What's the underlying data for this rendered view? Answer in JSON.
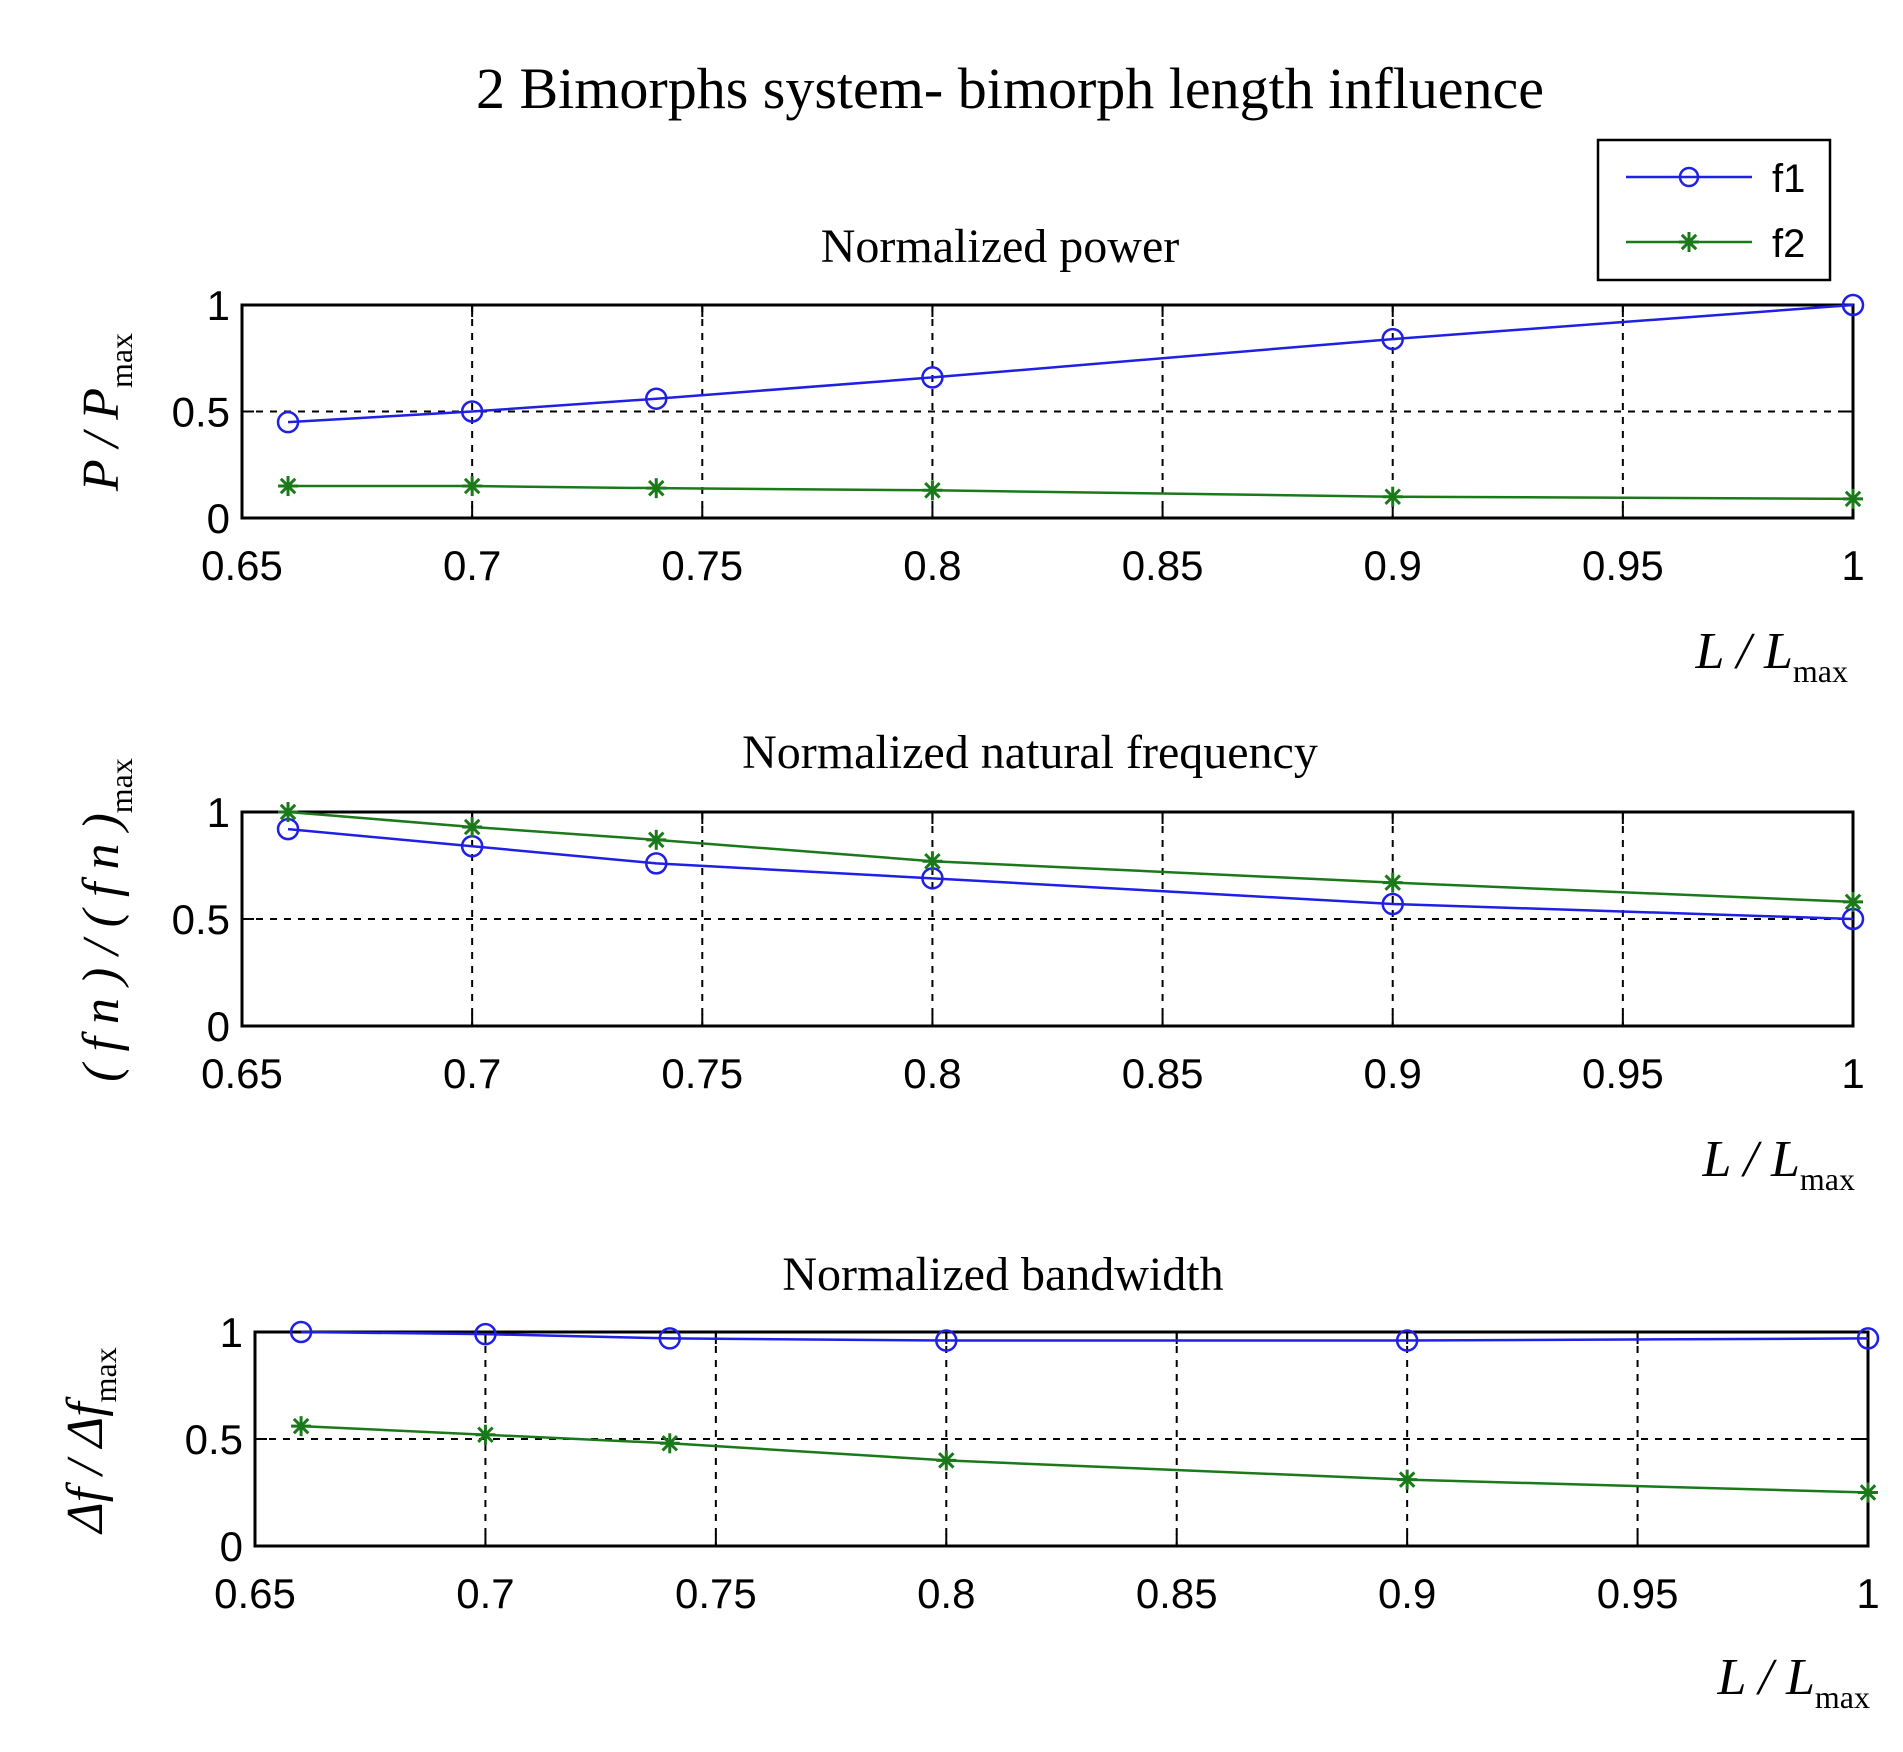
{
  "figure_title": "2 Bimorphs system- bimorph length influence",
  "colors": {
    "f1": "#1f1fe6",
    "f2": "#1a7a1a",
    "axis": "#000000",
    "grid": "#000000"
  },
  "legend": {
    "placement": "top-right",
    "entries": [
      {
        "label": "f1",
        "marker": "circle",
        "color_key": "f1"
      },
      {
        "label": "f2",
        "marker": "asterisk",
        "color_key": "f2"
      }
    ]
  },
  "chart_data": [
    {
      "type": "line",
      "title": "Normalized power",
      "xlabel": {
        "main": "L / L",
        "sub": "max"
      },
      "ylabel": {
        "main": "P / P",
        "sub": "max"
      },
      "xlim": [
        0.65,
        1
      ],
      "ylim": [
        0,
        1
      ],
      "xticks": [
        "0.65",
        "0.7",
        "0.75",
        "0.8",
        "0.85",
        "0.9",
        "0.95",
        "1"
      ],
      "yticks": [
        "0",
        "0.5",
        "1"
      ],
      "grid": true,
      "x": [
        0.66,
        0.7,
        0.74,
        0.8,
        0.9,
        1.0
      ],
      "series": [
        {
          "name": "f1",
          "marker": "circle",
          "values": [
            0.45,
            0.5,
            0.56,
            0.66,
            0.84,
            1.0
          ]
        },
        {
          "name": "f2",
          "marker": "asterisk",
          "values": [
            0.15,
            0.15,
            0.14,
            0.13,
            0.1,
            0.09
          ]
        }
      ]
    },
    {
      "type": "line",
      "title": "Normalized natural frequency",
      "xlabel": {
        "main": "L / L",
        "sub": "max"
      },
      "ylabel": {
        "main": "( f n ) / ( f n )",
        "sub": "max"
      },
      "xlim": [
        0.65,
        1
      ],
      "ylim": [
        0,
        1
      ],
      "xticks": [
        "0.65",
        "0.7",
        "0.75",
        "0.8",
        "0.85",
        "0.9",
        "0.95",
        "1"
      ],
      "yticks": [
        "0",
        "0.5",
        "1"
      ],
      "grid": true,
      "x": [
        0.66,
        0.7,
        0.74,
        0.8,
        0.9,
        1.0
      ],
      "series": [
        {
          "name": "f1",
          "marker": "circle",
          "values": [
            0.92,
            0.84,
            0.76,
            0.69,
            0.57,
            0.5
          ]
        },
        {
          "name": "f2",
          "marker": "asterisk",
          "values": [
            1.0,
            0.93,
            0.87,
            0.77,
            0.67,
            0.58
          ]
        }
      ]
    },
    {
      "type": "line",
      "title": "Normalized bandwidth",
      "xlabel": {
        "main": "L / L",
        "sub": "max"
      },
      "ylabel": {
        "main": "Δf / Δf",
        "sub": "max"
      },
      "xlim": [
        0.65,
        1
      ],
      "ylim": [
        0,
        1
      ],
      "xticks": [
        "0.65",
        "0.7",
        "0.75",
        "0.8",
        "0.85",
        "0.9",
        "0.95",
        "1"
      ],
      "yticks": [
        "0",
        "0.5",
        "1"
      ],
      "grid": true,
      "x": [
        0.66,
        0.7,
        0.74,
        0.8,
        0.9,
        1.0
      ],
      "series": [
        {
          "name": "f1",
          "marker": "circle",
          "values": [
            1.0,
            0.99,
            0.97,
            0.96,
            0.96,
            0.97
          ]
        },
        {
          "name": "f2",
          "marker": "asterisk",
          "values": [
            0.56,
            0.52,
            0.48,
            0.4,
            0.31,
            0.25
          ]
        }
      ]
    }
  ]
}
